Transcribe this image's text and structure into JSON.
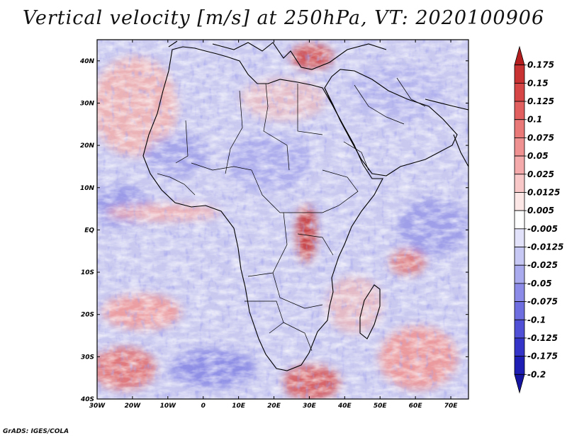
{
  "title": "Vertical velocity [m/s] at 250hPa, VT: 2020100906",
  "footer": "GrADS: IGES/COLA",
  "map": {
    "region": "Africa and surrounding oceans",
    "field": "vertical velocity",
    "units": "m/s",
    "level": "250hPa",
    "valid_time": "2020100906",
    "lon_range": [
      -30,
      75
    ],
    "lat_range": [
      -40,
      45
    ],
    "lon_ticks": [
      "30W",
      "20W",
      "10W",
      "0",
      "10E",
      "20E",
      "30E",
      "40E",
      "50E",
      "60E",
      "70E"
    ],
    "lat_ticks": [
      "40N",
      "30N",
      "20N",
      "10N",
      "EQ",
      "10S",
      "20S",
      "30S",
      "40S"
    ],
    "notable_features": [
      {
        "name": "strong ascent over East African highlands",
        "sign": "positive",
        "lon": 28,
        "lat": -2
      },
      {
        "name": "ascent east of Madagascar",
        "sign": "positive",
        "lon": 58,
        "lat": -10
      },
      {
        "name": "ascent band off southeast Africa",
        "sign": "positive",
        "lon": 32,
        "lat": -38
      },
      {
        "name": "ascent over Turkey",
        "sign": "positive",
        "lon": 30,
        "lat": 42
      },
      {
        "name": "descent over South Atlantic",
        "sign": "negative",
        "lon": 5,
        "lat": -35
      },
      {
        "name": "descent over tropical Indian Ocean",
        "sign": "negative",
        "lon": 60,
        "lat": 0
      }
    ]
  },
  "colorbar": {
    "labels": [
      "0.175",
      "0.15",
      "0.125",
      "0.1",
      "0.075",
      "0.05",
      "0.025",
      "0.0125",
      "0.005",
      "-0.005",
      "-0.0125",
      "-0.025",
      "-0.05",
      "-0.075",
      "-0.1",
      "-0.125",
      "-0.175",
      "-0.2"
    ],
    "colors": [
      "#b41e1e",
      "#c83232",
      "#d74646",
      "#e15f5f",
      "#e97878",
      "#ef9191",
      "#f4aaaa",
      "#f8c8c8",
      "#fde6e6",
      "#ffffff",
      "#e2e2fb",
      "#c8c8f5",
      "#aaaaef",
      "#8c8ce8",
      "#6e6ee0",
      "#5050d7",
      "#3434c8",
      "#1e1eb4",
      "#1414a0"
    ]
  }
}
